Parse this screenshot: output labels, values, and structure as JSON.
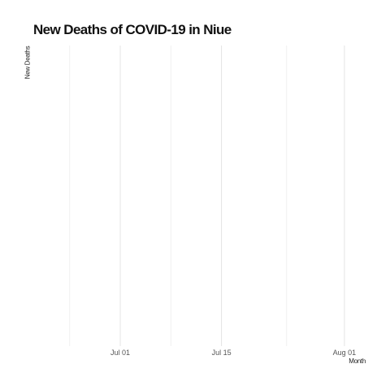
{
  "chart_data": {
    "type": "line",
    "title": "New Deaths of COVID-19 in Niue",
    "xlabel": "Month",
    "ylabel": "New Deaths",
    "x_ticks_major": [
      "Jul 01",
      "Jul 15",
      "Aug 01"
    ],
    "x_tick_dates_major": [
      "2020-07-01",
      "2020-07-15",
      "2020-08-01"
    ],
    "x_tick_dates_minor": [
      "2020-06-24",
      "2020-07-08",
      "2020-07-24"
    ],
    "xlim": [
      "2020-06-17",
      "2020-08-04"
    ],
    "series": [],
    "grid": true,
    "legend": "none"
  }
}
